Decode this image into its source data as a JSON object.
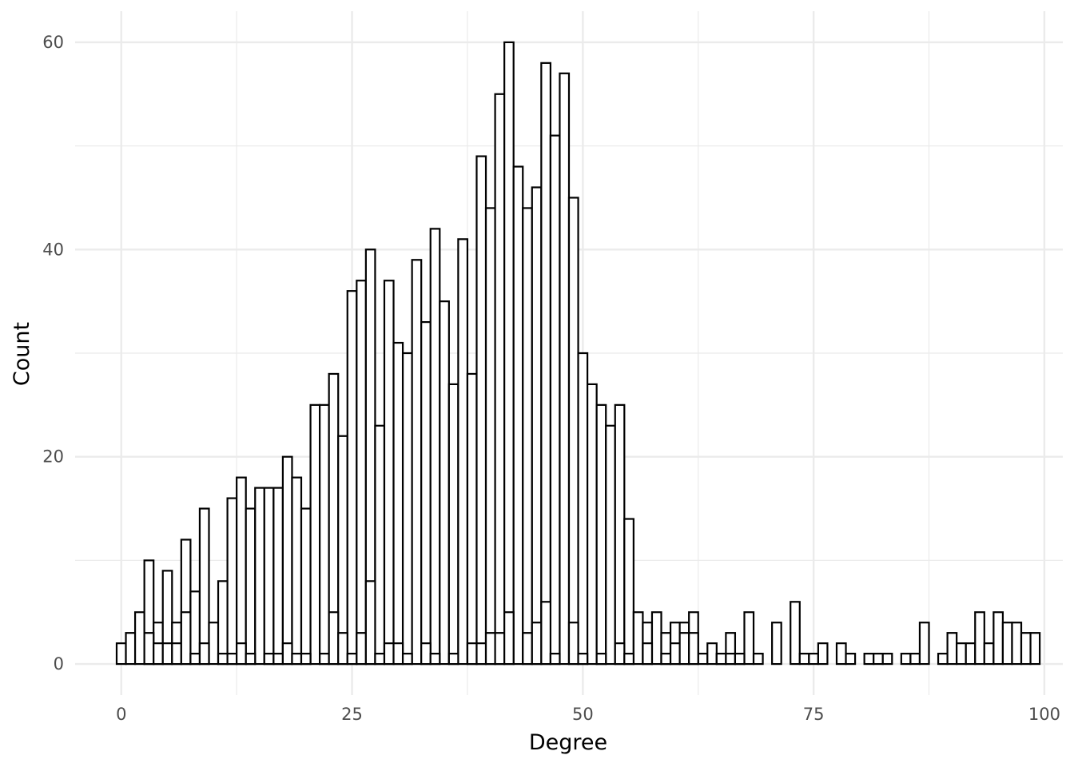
{
  "chart_data": {
    "type": "bar",
    "title": "",
    "xlabel": "Degree",
    "ylabel": "Count",
    "xlim": [
      -5,
      102
    ],
    "ylim": [
      -3,
      63
    ],
    "x_ticks": [
      0,
      25,
      50,
      75,
      100
    ],
    "y_ticks": [
      0,
      20,
      40,
      60
    ],
    "grid": true,
    "bin_width": 1,
    "series": [
      {
        "values": [
          {
            "x": 0,
            "y": 2
          },
          {
            "x": 1,
            "y": 3
          },
          {
            "x": 2,
            "y": 5
          },
          {
            "x": 3,
            "y": 10
          },
          {
            "x": 4,
            "y": 4
          },
          {
            "x": 5,
            "y": 9
          },
          {
            "x": 6,
            "y": 4
          },
          {
            "x": 7,
            "y": 12
          },
          {
            "x": 8,
            "y": 7
          },
          {
            "x": 9,
            "y": 15
          },
          {
            "x": 10,
            "y": 4
          },
          {
            "x": 11,
            "y": 8
          },
          {
            "x": 12,
            "y": 16
          },
          {
            "x": 13,
            "y": 18
          },
          {
            "x": 14,
            "y": 15
          },
          {
            "x": 15,
            "y": 17
          },
          {
            "x": 16,
            "y": 17
          },
          {
            "x": 17,
            "y": 17
          },
          {
            "x": 18,
            "y": 20
          },
          {
            "x": 19,
            "y": 18
          },
          {
            "x": 20,
            "y": 15
          },
          {
            "x": 21,
            "y": 25
          },
          {
            "x": 22,
            "y": 25
          },
          {
            "x": 23,
            "y": 28
          },
          {
            "x": 24,
            "y": 22
          },
          {
            "x": 25,
            "y": 36
          },
          {
            "x": 26,
            "y": 37
          },
          {
            "x": 27,
            "y": 40
          },
          {
            "x": 28,
            "y": 23
          },
          {
            "x": 29,
            "y": 37
          },
          {
            "x": 30,
            "y": 31
          },
          {
            "x": 31,
            "y": 30
          },
          {
            "x": 32,
            "y": 39
          },
          {
            "x": 33,
            "y": 33
          },
          {
            "x": 34,
            "y": 42
          },
          {
            "x": 35,
            "y": 35
          },
          {
            "x": 36,
            "y": 27
          },
          {
            "x": 37,
            "y": 41
          },
          {
            "x": 38,
            "y": 28
          },
          {
            "x": 39,
            "y": 49
          },
          {
            "x": 40,
            "y": 44
          },
          {
            "x": 41,
            "y": 55
          },
          {
            "x": 42,
            "y": 60
          },
          {
            "x": 43,
            "y": 48
          },
          {
            "x": 44,
            "y": 44
          },
          {
            "x": 45,
            "y": 46
          },
          {
            "x": 46,
            "y": 58
          },
          {
            "x": 47,
            "y": 51
          },
          {
            "x": 48,
            "y": 57
          },
          {
            "x": 49,
            "y": 45
          },
          {
            "x": 50,
            "y": 30
          },
          {
            "x": 51,
            "y": 27
          },
          {
            "x": 52,
            "y": 25
          },
          {
            "x": 53,
            "y": 23
          },
          {
            "x": 54,
            "y": 25
          },
          {
            "x": 55,
            "y": 14
          },
          {
            "x": 56,
            "y": 5
          },
          {
            "x": 57,
            "y": 4
          },
          {
            "x": 58,
            "y": 5
          },
          {
            "x": 59,
            "y": 3
          },
          {
            "x": 60,
            "y": 4
          },
          {
            "x": 61,
            "y": 4
          },
          {
            "x": 62,
            "y": 5
          },
          {
            "x": 63,
            "y": 1
          },
          {
            "x": 64,
            "y": 2
          },
          {
            "x": 65,
            "y": 1
          },
          {
            "x": 66,
            "y": 3
          },
          {
            "x": 67,
            "y": 1
          },
          {
            "x": 68,
            "y": 5
          },
          {
            "x": 69,
            "y": 1
          },
          {
            "x": 71,
            "y": 4
          },
          {
            "x": 73,
            "y": 6
          },
          {
            "x": 74,
            "y": 1
          },
          {
            "x": 75,
            "y": 1
          },
          {
            "x": 76,
            "y": 2
          },
          {
            "x": 78,
            "y": 2
          },
          {
            "x": 79,
            "y": 1
          },
          {
            "x": 81,
            "y": 1
          },
          {
            "x": 82,
            "y": 1
          },
          {
            "x": 83,
            "y": 1
          },
          {
            "x": 85,
            "y": 1
          },
          {
            "x": 86,
            "y": 1
          },
          {
            "x": 87,
            "y": 4
          },
          {
            "x": 89,
            "y": 1
          },
          {
            "x": 90,
            "y": 3
          },
          {
            "x": 91,
            "y": 2
          },
          {
            "x": 92,
            "y": 2
          },
          {
            "x": 93,
            "y": 5
          },
          {
            "x": 94,
            "y": 2
          },
          {
            "x": 95,
            "y": 5
          },
          {
            "x": 96,
            "y": 4
          },
          {
            "x": 97,
            "y": 4
          },
          {
            "x": 98,
            "y": 3
          },
          {
            "x": 99,
            "y": 3
          }
        ]
      },
      {
        "values": [
          {
            "x": 3,
            "y": 3
          },
          {
            "x": 4,
            "y": 2
          },
          {
            "x": 5,
            "y": 2
          },
          {
            "x": 6,
            "y": 2
          },
          {
            "x": 7,
            "y": 5
          },
          {
            "x": 8,
            "y": 1
          },
          {
            "x": 9,
            "y": 2
          },
          {
            "x": 11,
            "y": 1
          },
          {
            "x": 12,
            "y": 1
          },
          {
            "x": 13,
            "y": 2
          },
          {
            "x": 14,
            "y": 1
          },
          {
            "x": 16,
            "y": 1
          },
          {
            "x": 17,
            "y": 1
          },
          {
            "x": 18,
            "y": 2
          },
          {
            "x": 19,
            "y": 1
          },
          {
            "x": 20,
            "y": 1
          },
          {
            "x": 22,
            "y": 1
          },
          {
            "x": 23,
            "y": 5
          },
          {
            "x": 24,
            "y": 3
          },
          {
            "x": 25,
            "y": 1
          },
          {
            "x": 26,
            "y": 3
          },
          {
            "x": 27,
            "y": 8
          },
          {
            "x": 28,
            "y": 1
          },
          {
            "x": 29,
            "y": 2
          },
          {
            "x": 30,
            "y": 2
          },
          {
            "x": 31,
            "y": 1
          },
          {
            "x": 33,
            "y": 2
          },
          {
            "x": 34,
            "y": 1
          },
          {
            "x": 36,
            "y": 1
          },
          {
            "x": 38,
            "y": 2
          },
          {
            "x": 39,
            "y": 2
          },
          {
            "x": 40,
            "y": 3
          },
          {
            "x": 41,
            "y": 3
          },
          {
            "x": 42,
            "y": 5
          },
          {
            "x": 44,
            "y": 3
          },
          {
            "x": 45,
            "y": 4
          },
          {
            "x": 46,
            "y": 6
          },
          {
            "x": 47,
            "y": 1
          },
          {
            "x": 49,
            "y": 4
          },
          {
            "x": 50,
            "y": 1
          },
          {
            "x": 52,
            "y": 1
          },
          {
            "x": 54,
            "y": 2
          },
          {
            "x": 55,
            "y": 1
          },
          {
            "x": 57,
            "y": 2
          },
          {
            "x": 59,
            "y": 1
          },
          {
            "x": 60,
            "y": 2
          },
          {
            "x": 61,
            "y": 3
          },
          {
            "x": 62,
            "y": 3
          },
          {
            "x": 65,
            "y": 1
          },
          {
            "x": 66,
            "y": 1
          },
          {
            "x": 67,
            "y": 1
          }
        ]
      }
    ]
  }
}
